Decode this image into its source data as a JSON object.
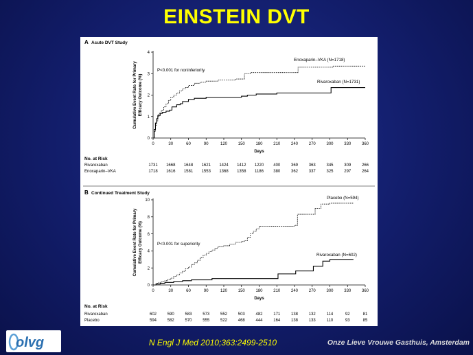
{
  "slide": {
    "title": "EINSTEIN DVT",
    "citation": "N Engl J Med 2010;363:2499-2510",
    "institution": "Onze Lieve Vrouwe Gasthuis, Amsterdam",
    "logo_text": "olvg",
    "colors": {
      "background": "#121d6a",
      "title": "#ffff00",
      "citation": "#ffff00",
      "institution": "#dcdcdc",
      "logo": "#2a6fb0"
    }
  },
  "chart_data": [
    {
      "type": "line",
      "panel_letter": "A",
      "title": "Acute DVT Study",
      "xlabel": "Days",
      "ylabel": "Cumulative Event Rate for Primary Efficacy Outcome (%)",
      "xlim": [
        0,
        360
      ],
      "ylim": [
        0,
        4
      ],
      "xticks": [
        0,
        30,
        60,
        90,
        120,
        150,
        180,
        210,
        240,
        270,
        300,
        330,
        360
      ],
      "yticks": [
        0,
        1,
        2,
        3,
        4
      ],
      "grid": false,
      "annotation": "P<0.001 for noninferiority",
      "series": [
        {
          "name": "Enoxaparin–VKA (N=1718)",
          "style": "dashed",
          "points": [
            [
              0,
              0
            ],
            [
              2,
              0.3
            ],
            [
              4,
              0.6
            ],
            [
              6,
              0.8
            ],
            [
              8,
              1.0
            ],
            [
              10,
              1.15
            ],
            [
              14,
              1.3
            ],
            [
              18,
              1.45
            ],
            [
              22,
              1.6
            ],
            [
              26,
              1.75
            ],
            [
              30,
              1.9
            ],
            [
              35,
              2.0
            ],
            [
              40,
              2.1
            ],
            [
              45,
              2.2
            ],
            [
              50,
              2.3
            ],
            [
              55,
              2.35
            ],
            [
              60,
              2.45
            ],
            [
              70,
              2.55
            ],
            [
              80,
              2.6
            ],
            [
              90,
              2.65
            ],
            [
              100,
              2.65
            ],
            [
              110,
              2.7
            ],
            [
              130,
              2.7
            ],
            [
              140,
              2.75
            ],
            [
              150,
              2.75
            ],
            [
              155,
              3.0
            ],
            [
              160,
              3.0
            ],
            [
              165,
              3.05
            ],
            [
              175,
              3.05
            ],
            [
              190,
              3.05
            ],
            [
              220,
              3.05
            ],
            [
              240,
              3.05
            ],
            [
              246,
              3.3
            ],
            [
              300,
              3.3
            ],
            [
              305,
              3.35
            ],
            [
              330,
              3.35
            ],
            [
              360,
              3.35
            ]
          ]
        },
        {
          "name": "Rivaroxaban (N=1731)",
          "style": "solid",
          "points": [
            [
              0,
              0
            ],
            [
              2,
              0.4
            ],
            [
              4,
              0.7
            ],
            [
              6,
              0.9
            ],
            [
              8,
              1.05
            ],
            [
              12,
              1.15
            ],
            [
              16,
              1.2
            ],
            [
              22,
              1.25
            ],
            [
              28,
              1.3
            ],
            [
              32,
              1.45
            ],
            [
              40,
              1.55
            ],
            [
              46,
              1.6
            ],
            [
              50,
              1.7
            ],
            [
              60,
              1.8
            ],
            [
              70,
              1.85
            ],
            [
              90,
              1.9
            ],
            [
              130,
              1.9
            ],
            [
              150,
              1.95
            ],
            [
              160,
              2.0
            ],
            [
              175,
              2.05
            ],
            [
              210,
              2.1
            ],
            [
              300,
              2.1
            ],
            [
              302,
              2.35
            ],
            [
              330,
              2.35
            ],
            [
              360,
              2.35
            ]
          ]
        }
      ],
      "risk_table": {
        "header": "No. at Risk",
        "rows": [
          {
            "label": "Rivaroxaban",
            "values": [
              "1731",
              "1668",
              "1648",
              "1621",
              "1424",
              "1412",
              "1220",
              "400",
              "369",
              "363",
              "345",
              "309",
              "266"
            ]
          },
          {
            "label": "Enoxaparin–VKA",
            "values": [
              "1718",
              "1616",
              "1581",
              "1553",
              "1368",
              "1358",
              "1186",
              "380",
              "362",
              "337",
              "325",
              "297",
              "264"
            ]
          }
        ]
      }
    },
    {
      "type": "line",
      "panel_letter": "B",
      "title": "Continued Treatment Study",
      "xlabel": "Days",
      "ylabel": "Cumulative Event Rate for Primary Efficacy Outcome (%)",
      "xlim": [
        0,
        360
      ],
      "ylim": [
        0,
        10
      ],
      "xticks": [
        0,
        30,
        60,
        90,
        120,
        150,
        180,
        210,
        240,
        270,
        300,
        330,
        360
      ],
      "yticks": [
        0,
        2,
        4,
        6,
        8,
        10
      ],
      "grid": false,
      "annotation": "P<0.001 for superiority",
      "series": [
        {
          "name": "Placebo (N=594)",
          "style": "dashed",
          "points": [
            [
              0,
              0
            ],
            [
              5,
              0.2
            ],
            [
              10,
              0.3
            ],
            [
              15,
              0.4
            ],
            [
              20,
              0.5
            ],
            [
              25,
              0.65
            ],
            [
              30,
              0.8
            ],
            [
              35,
              1.0
            ],
            [
              40,
              1.2
            ],
            [
              45,
              1.4
            ],
            [
              50,
              1.6
            ],
            [
              55,
              1.9
            ],
            [
              60,
              2.1
            ],
            [
              65,
              2.4
            ],
            [
              70,
              2.6
            ],
            [
              75,
              2.9
            ],
            [
              80,
              3.2
            ],
            [
              85,
              3.5
            ],
            [
              90,
              3.7
            ],
            [
              95,
              3.9
            ],
            [
              100,
              4.1
            ],
            [
              105,
              4.3
            ],
            [
              110,
              4.5
            ],
            [
              120,
              4.6
            ],
            [
              130,
              4.8
            ],
            [
              140,
              5.0
            ],
            [
              150,
              5.1
            ],
            [
              155,
              5.2
            ],
            [
              160,
              5.6
            ],
            [
              165,
              6.0
            ],
            [
              170,
              6.3
            ],
            [
              175,
              6.6
            ],
            [
              180,
              6.9
            ],
            [
              210,
              6.9
            ],
            [
              240,
              7.0
            ],
            [
              245,
              8.3
            ],
            [
              270,
              8.3
            ],
            [
              275,
              9.0
            ],
            [
              285,
              9.5
            ],
            [
              300,
              9.6
            ],
            [
              340,
              9.6
            ]
          ]
        },
        {
          "name": "Rivaroxaban (N=602)",
          "style": "solid",
          "points": [
            [
              0,
              0
            ],
            [
              5,
              0.1
            ],
            [
              12,
              0.2
            ],
            [
              20,
              0.3
            ],
            [
              35,
              0.4
            ],
            [
              50,
              0.5
            ],
            [
              65,
              0.6
            ],
            [
              100,
              0.75
            ],
            [
              180,
              0.75
            ],
            [
              210,
              0.75
            ],
            [
              212,
              1.3
            ],
            [
              240,
              1.3
            ],
            [
              242,
              1.65
            ],
            [
              270,
              1.65
            ],
            [
              272,
              2.2
            ],
            [
              285,
              2.2
            ],
            [
              288,
              2.8
            ],
            [
              300,
              3.0
            ],
            [
              340,
              3.0
            ]
          ]
        }
      ],
      "risk_table": {
        "header": "No. at Risk",
        "rows": [
          {
            "label": "Rivaroxaban",
            "values": [
              "602",
              "590",
              "583",
              "573",
              "552",
              "503",
              "482",
              "171",
              "138",
              "132",
              "114",
              "92",
              "81"
            ]
          },
          {
            "label": "Placebo",
            "values": [
              "594",
              "582",
              "570",
              "555",
              "522",
              "468",
              "444",
              "164",
              "138",
              "133",
              "110",
              "93",
              "85"
            ]
          }
        ]
      }
    }
  ]
}
